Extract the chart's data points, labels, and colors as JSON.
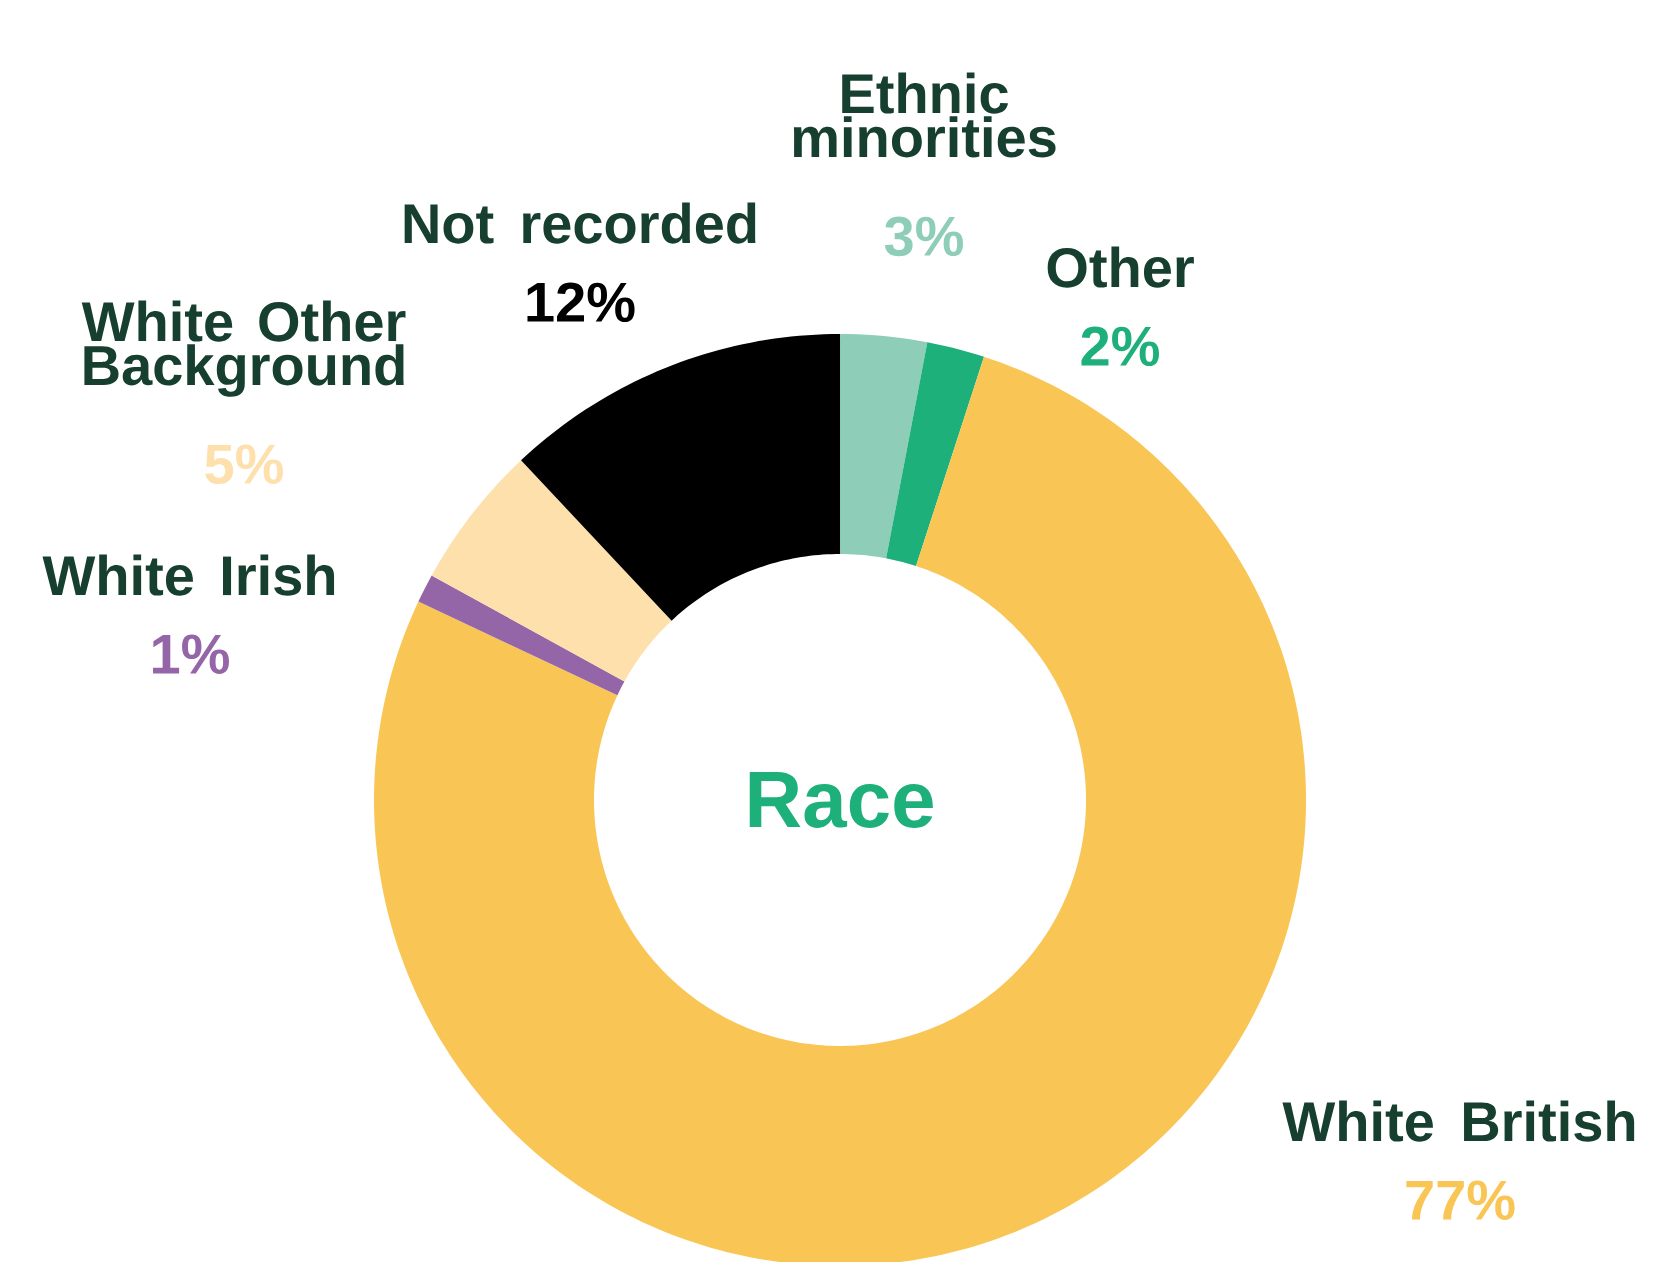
{
  "chart_data": {
    "type": "donut",
    "title": "Race",
    "categories": [
      "Ethnic minorities",
      "Other",
      "White British",
      "White Irish",
      "White Other Background",
      "Not recorded"
    ],
    "values": [
      3,
      2,
      77,
      1,
      5,
      12
    ],
    "value_labels": [
      "3%",
      "2%",
      "77%",
      "1%",
      "5%",
      "12%"
    ],
    "colors": [
      "#8ecdb8",
      "#1db07a",
      "#f9c655",
      "#9466a8",
      "#fde0ab",
      "#000000"
    ]
  }
}
